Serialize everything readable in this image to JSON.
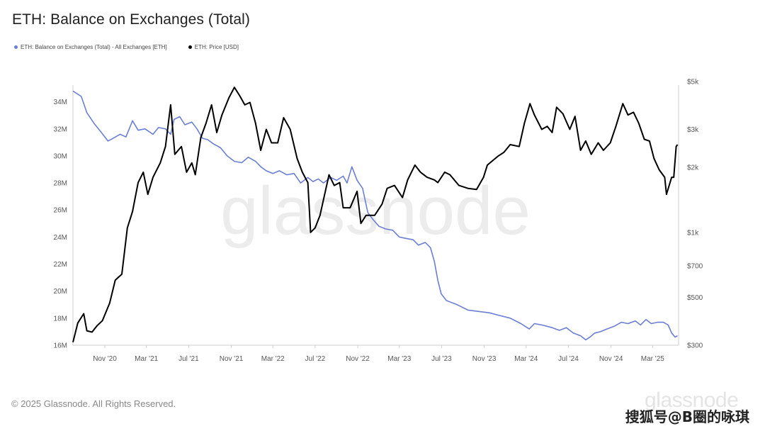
{
  "title": "ETH: Balance on Exchanges (Total)",
  "footer": "© 2025 Glassnode. All Rights Reserved.",
  "logo_bottom": "glassnode",
  "watermark": "搜狐号@B圈的咏琪",
  "chart_watermark": "glassnode",
  "colors": {
    "balance": "#6a7fd4",
    "price": "#000000",
    "axis": "#cfcfcf"
  },
  "chart_data": {
    "type": "line",
    "legend": [
      {
        "label": "ETH: Balance on Exchanges (Total) - All Exchanges [ETH]",
        "color": "#6a7fd4"
      },
      {
        "label": "ETH: Price [USD]",
        "color": "#000000"
      }
    ],
    "x_tick_labels": [
      "Nov '20",
      "Mar '21",
      "Jul '21",
      "Nov '21",
      "Mar '22",
      "Jul '22",
      "Nov '22",
      "Mar '23",
      "Jul '23",
      "Nov '23",
      "Mar '24",
      "Jul '24",
      "Nov '24",
      "Mar '25"
    ],
    "x_tick_dates": [
      "2020-11-01",
      "2021-03-01",
      "2021-07-01",
      "2021-11-01",
      "2022-03-01",
      "2022-07-01",
      "2022-11-01",
      "2023-03-01",
      "2023-07-01",
      "2023-11-01",
      "2024-03-01",
      "2024-07-01",
      "2024-11-01",
      "2025-03-01"
    ],
    "x_range": [
      "2020-08-01",
      "2025-05-15"
    ],
    "y_left": {
      "ticks": [
        "16M",
        "18M",
        "20M",
        "22M",
        "24M",
        "26M",
        "28M",
        "30M",
        "32M",
        "34M"
      ],
      "values": [
        16,
        18,
        20,
        22,
        24,
        26,
        28,
        30,
        32,
        34
      ],
      "range": [
        16,
        35.5
      ],
      "unit": "M ETH"
    },
    "y_right": {
      "ticks": [
        "$300",
        "$500",
        "$700",
        "$1k",
        "$2k",
        "$3k",
        "$5k"
      ],
      "values": [
        300,
        500,
        700,
        1000,
        2000,
        3000,
        5000
      ],
      "range": [
        300,
        5000
      ],
      "scale": "log"
    },
    "series": [
      {
        "name": "ETH: Balance on Exchanges (Total) - All Exchanges [ETH]",
        "axis": "left",
        "points": [
          [
            "2020-08-01",
            34.8
          ],
          [
            "2020-08-25",
            34.4
          ],
          [
            "2020-09-10",
            33.2
          ],
          [
            "2020-10-01",
            32.4
          ],
          [
            "2020-10-20",
            31.8
          ],
          [
            "2020-11-10",
            31.1
          ],
          [
            "2020-11-25",
            31.3
          ],
          [
            "2020-12-15",
            31.6
          ],
          [
            "2021-01-01",
            31.4
          ],
          [
            "2021-01-20",
            32.6
          ],
          [
            "2021-02-05",
            31.9
          ],
          [
            "2021-02-25",
            32.0
          ],
          [
            "2021-03-20",
            31.6
          ],
          [
            "2021-04-05",
            32.1
          ],
          [
            "2021-04-25",
            32.0
          ],
          [
            "2021-05-10",
            31.6
          ],
          [
            "2021-05-20",
            32.7
          ],
          [
            "2021-06-05",
            32.9
          ],
          [
            "2021-06-20",
            32.3
          ],
          [
            "2021-07-10",
            32.5
          ],
          [
            "2021-07-25",
            32.0
          ],
          [
            "2021-08-10",
            31.3
          ],
          [
            "2021-08-25",
            31.2
          ],
          [
            "2021-09-10",
            30.9
          ],
          [
            "2021-10-01",
            30.6
          ],
          [
            "2021-10-20",
            30.0
          ],
          [
            "2021-11-10",
            29.6
          ],
          [
            "2021-12-01",
            29.5
          ],
          [
            "2021-12-20",
            29.9
          ],
          [
            "2022-01-10",
            29.6
          ],
          [
            "2022-01-25",
            29.2
          ],
          [
            "2022-02-10",
            28.9
          ],
          [
            "2022-03-01",
            28.7
          ],
          [
            "2022-03-20",
            28.9
          ],
          [
            "2022-04-10",
            28.6
          ],
          [
            "2022-05-01",
            28.7
          ],
          [
            "2022-05-20",
            28.0
          ],
          [
            "2022-06-10",
            28.4
          ],
          [
            "2022-06-25",
            28.1
          ],
          [
            "2022-07-10",
            28.3
          ],
          [
            "2022-07-25",
            28.0
          ],
          [
            "2022-08-15",
            28.4
          ],
          [
            "2022-09-01",
            28.2
          ],
          [
            "2022-09-20",
            28.5
          ],
          [
            "2022-10-01",
            28.0
          ],
          [
            "2022-10-15",
            29.2
          ],
          [
            "2022-10-30",
            28.2
          ],
          [
            "2022-11-15",
            27.6
          ],
          [
            "2022-11-30",
            25.8
          ],
          [
            "2022-12-15",
            25.3
          ],
          [
            "2023-01-01",
            24.8
          ],
          [
            "2023-01-20",
            24.6
          ],
          [
            "2023-02-10",
            24.5
          ],
          [
            "2023-03-01",
            24.0
          ],
          [
            "2023-03-20",
            23.9
          ],
          [
            "2023-04-10",
            23.8
          ],
          [
            "2023-04-25",
            23.4
          ],
          [
            "2023-05-15",
            23.6
          ],
          [
            "2023-05-30",
            23.2
          ],
          [
            "2023-06-10",
            22.2
          ],
          [
            "2023-06-20",
            20.8
          ],
          [
            "2023-06-30",
            19.8
          ],
          [
            "2023-07-15",
            19.3
          ],
          [
            "2023-08-15",
            19.0
          ],
          [
            "2023-09-15",
            18.6
          ],
          [
            "2023-10-15",
            18.5
          ],
          [
            "2023-11-15",
            18.4
          ],
          [
            "2023-12-15",
            18.2
          ],
          [
            "2024-01-15",
            18.0
          ],
          [
            "2024-02-15",
            17.6
          ],
          [
            "2024-03-10",
            17.2
          ],
          [
            "2024-03-25",
            17.6
          ],
          [
            "2024-04-15",
            17.5
          ],
          [
            "2024-05-15",
            17.3
          ],
          [
            "2024-06-05",
            17.1
          ],
          [
            "2024-06-25",
            17.3
          ],
          [
            "2024-07-15",
            16.9
          ],
          [
            "2024-08-05",
            16.7
          ],
          [
            "2024-08-20",
            16.4
          ],
          [
            "2024-09-01",
            16.6
          ],
          [
            "2024-09-15",
            16.9
          ],
          [
            "2024-10-01",
            17.0
          ],
          [
            "2024-10-20",
            17.2
          ],
          [
            "2024-11-10",
            17.4
          ],
          [
            "2024-12-01",
            17.7
          ],
          [
            "2024-12-20",
            17.6
          ],
          [
            "2025-01-10",
            17.8
          ],
          [
            "2025-01-25",
            17.5
          ],
          [
            "2025-02-10",
            17.9
          ],
          [
            "2025-02-25",
            17.6
          ],
          [
            "2025-03-15",
            17.7
          ],
          [
            "2025-04-01",
            17.7
          ],
          [
            "2025-04-15",
            17.5
          ],
          [
            "2025-04-25",
            16.9
          ],
          [
            "2025-05-05",
            16.6
          ],
          [
            "2025-05-12",
            16.7
          ]
        ]
      },
      {
        "name": "ETH: Price [USD]",
        "axis": "right",
        "points": [
          [
            "2020-08-01",
            310
          ],
          [
            "2020-08-15",
            380
          ],
          [
            "2020-09-01",
            420
          ],
          [
            "2020-09-10",
            350
          ],
          [
            "2020-09-25",
            345
          ],
          [
            "2020-10-10",
            370
          ],
          [
            "2020-10-25",
            390
          ],
          [
            "2020-11-15",
            470
          ],
          [
            "2020-12-01",
            600
          ],
          [
            "2020-12-20",
            640
          ],
          [
            "2021-01-05",
            1050
          ],
          [
            "2021-01-20",
            1250
          ],
          [
            "2021-02-05",
            1700
          ],
          [
            "2021-02-20",
            1900
          ],
          [
            "2021-03-05",
            1500
          ],
          [
            "2021-03-20",
            1800
          ],
          [
            "2021-04-10",
            2100
          ],
          [
            "2021-04-25",
            2500
          ],
          [
            "2021-05-10",
            3900
          ],
          [
            "2021-05-22",
            2300
          ],
          [
            "2021-06-10",
            2500
          ],
          [
            "2021-06-25",
            1900
          ],
          [
            "2021-07-10",
            2100
          ],
          [
            "2021-07-20",
            1850
          ],
          [
            "2021-08-05",
            2750
          ],
          [
            "2021-08-20",
            3200
          ],
          [
            "2021-09-05",
            3900
          ],
          [
            "2021-09-20",
            2900
          ],
          [
            "2021-10-05",
            3500
          ],
          [
            "2021-10-25",
            4200
          ],
          [
            "2021-11-10",
            4700
          ],
          [
            "2021-11-25",
            4300
          ],
          [
            "2021-12-10",
            3900
          ],
          [
            "2021-12-25",
            4000
          ],
          [
            "2022-01-10",
            3200
          ],
          [
            "2022-01-25",
            2400
          ],
          [
            "2022-02-10",
            3000
          ],
          [
            "2022-02-25",
            2600
          ],
          [
            "2022-03-15",
            2600
          ],
          [
            "2022-04-01",
            3400
          ],
          [
            "2022-04-20",
            3000
          ],
          [
            "2022-05-10",
            2200
          ],
          [
            "2022-05-25",
            1900
          ],
          [
            "2022-06-10",
            1700
          ],
          [
            "2022-06-18",
            1000
          ],
          [
            "2022-07-01",
            1050
          ],
          [
            "2022-07-15",
            1200
          ],
          [
            "2022-08-10",
            1850
          ],
          [
            "2022-08-25",
            1650
          ],
          [
            "2022-09-10",
            1700
          ],
          [
            "2022-09-20",
            1300
          ],
          [
            "2022-10-10",
            1300
          ],
          [
            "2022-10-30",
            1550
          ],
          [
            "2022-11-10",
            1100
          ],
          [
            "2022-11-25",
            1200
          ],
          [
            "2022-12-20",
            1200
          ],
          [
            "2023-01-10",
            1350
          ],
          [
            "2023-01-25",
            1600
          ],
          [
            "2023-02-15",
            1650
          ],
          [
            "2023-03-10",
            1450
          ],
          [
            "2023-03-25",
            1750
          ],
          [
            "2023-04-15",
            2050
          ],
          [
            "2023-05-01",
            1900
          ],
          [
            "2023-05-20",
            1800
          ],
          [
            "2023-06-10",
            1750
          ],
          [
            "2023-06-20",
            1700
          ],
          [
            "2023-07-10",
            1900
          ],
          [
            "2023-07-25",
            1850
          ],
          [
            "2023-08-20",
            1650
          ],
          [
            "2023-09-15",
            1600
          ],
          [
            "2023-10-10",
            1580
          ],
          [
            "2023-10-30",
            1800
          ],
          [
            "2023-11-10",
            2050
          ],
          [
            "2023-12-10",
            2250
          ],
          [
            "2023-12-28",
            2350
          ],
          [
            "2024-01-15",
            2550
          ],
          [
            "2024-02-10",
            2500
          ],
          [
            "2024-02-25",
            3200
          ],
          [
            "2024-03-12",
            3950
          ],
          [
            "2024-03-25",
            3500
          ],
          [
            "2024-04-15",
            3000
          ],
          [
            "2024-05-01",
            3100
          ],
          [
            "2024-05-15",
            2900
          ],
          [
            "2024-05-28",
            3800
          ],
          [
            "2024-06-15",
            3550
          ],
          [
            "2024-07-05",
            3000
          ],
          [
            "2024-07-20",
            3450
          ],
          [
            "2024-08-05",
            2400
          ],
          [
            "2024-08-20",
            2650
          ],
          [
            "2024-09-05",
            2300
          ],
          [
            "2024-09-25",
            2600
          ],
          [
            "2024-10-10",
            2400
          ],
          [
            "2024-10-30",
            2600
          ],
          [
            "2024-11-15",
            3100
          ],
          [
            "2024-12-05",
            3950
          ],
          [
            "2024-12-20",
            3500
          ],
          [
            "2025-01-05",
            3600
          ],
          [
            "2025-01-20",
            3200
          ],
          [
            "2025-02-05",
            2700
          ],
          [
            "2025-02-20",
            2650
          ],
          [
            "2025-03-05",
            2200
          ],
          [
            "2025-03-20",
            1950
          ],
          [
            "2025-04-05",
            1800
          ],
          [
            "2025-04-10",
            1500
          ],
          [
            "2025-04-25",
            1800
          ],
          [
            "2025-05-01",
            1800
          ],
          [
            "2025-05-08",
            2500
          ],
          [
            "2025-05-12",
            2550
          ]
        ]
      }
    ]
  }
}
